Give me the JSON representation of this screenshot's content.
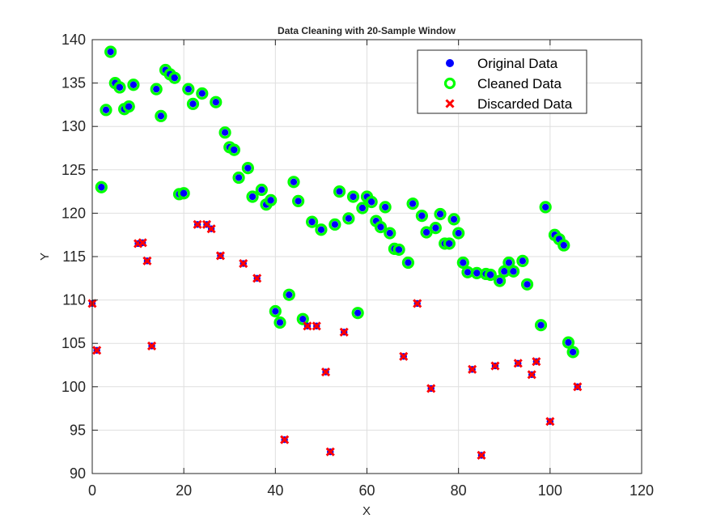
{
  "chart_data": {
    "type": "scatter",
    "title": "Data Cleaning with 20-Sample Window",
    "xlabel": "X",
    "ylabel": "Y",
    "xlim": [
      0,
      120
    ],
    "ylim": [
      90,
      140
    ],
    "xticks": [
      0,
      20,
      40,
      60,
      80,
      100,
      120
    ],
    "yticks": [
      90,
      95,
      100,
      105,
      110,
      115,
      120,
      125,
      130,
      135,
      140
    ],
    "grid": true,
    "legend_position": "top-right",
    "colors": {
      "original": "#0000ff",
      "cleaned": "#00ff00",
      "discarded": "#ff0000",
      "grid": "#dfdfdf",
      "axis": "#262626"
    },
    "series": [
      {
        "name": "Cleaned Data",
        "x": [
          2,
          3,
          4,
          5,
          6,
          7,
          8,
          9,
          14,
          15,
          16,
          17,
          18,
          19,
          20,
          21,
          22,
          24,
          27,
          29,
          30,
          31,
          32,
          34,
          35,
          37,
          38,
          39,
          40,
          41,
          43,
          44,
          45,
          46,
          48,
          50,
          53,
          54,
          56,
          57,
          58,
          59,
          60,
          61,
          62,
          63,
          64,
          65,
          66,
          67,
          69,
          70,
          72,
          73,
          75,
          76,
          77,
          78,
          79,
          80,
          81,
          82,
          84,
          86,
          87,
          89,
          90,
          91,
          92,
          94,
          95,
          98,
          99,
          101,
          102,
          103,
          104,
          105
        ],
        "y": [
          123.0,
          131.9,
          138.6,
          135.0,
          134.5,
          132.0,
          132.3,
          134.8,
          134.3,
          131.2,
          136.5,
          136.0,
          135.6,
          122.2,
          122.3,
          134.3,
          132.6,
          133.8,
          132.8,
          129.3,
          127.6,
          127.3,
          124.1,
          125.2,
          121.9,
          122.7,
          121.0,
          121.5,
          108.7,
          107.4,
          110.6,
          123.6,
          121.4,
          107.8,
          119.0,
          118.1,
          118.7,
          122.5,
          119.4,
          121.9,
          108.5,
          120.6,
          121.9,
          121.3,
          119.1,
          118.4,
          120.7,
          117.7,
          115.9,
          115.8,
          114.3,
          121.1,
          119.7,
          117.8,
          118.3,
          119.9,
          116.5,
          116.5,
          119.3,
          117.7,
          114.3,
          113.2,
          113.1,
          113.0,
          112.9,
          112.2,
          113.3,
          114.3,
          113.3,
          114.5,
          111.8,
          107.1,
          120.7,
          117.5,
          117.0,
          116.3,
          105.1,
          104.0
        ]
      },
      {
        "name": "Discarded Data",
        "x": [
          0,
          1,
          10,
          11,
          12,
          13,
          23,
          25,
          26,
          28,
          33,
          36,
          42,
          47,
          49,
          51,
          52,
          55,
          68,
          71,
          74,
          83,
          85,
          88,
          93,
          96,
          97,
          100,
          106
        ],
        "y": [
          109.6,
          104.2,
          116.5,
          116.6,
          114.5,
          104.7,
          118.7,
          118.7,
          118.2,
          115.1,
          114.2,
          112.5,
          93.9,
          107.0,
          107.0,
          101.7,
          92.5,
          106.3,
          103.5,
          109.6,
          99.8,
          102.0,
          92.1,
          102.4,
          102.7,
          101.4,
          102.9,
          96.0,
          100.0
        ]
      }
    ],
    "legend": [
      {
        "label": "Original Data",
        "marker": "dot"
      },
      {
        "label": "Cleaned Data",
        "marker": "ring"
      },
      {
        "label": "Discarded Data",
        "marker": "x"
      }
    ]
  }
}
